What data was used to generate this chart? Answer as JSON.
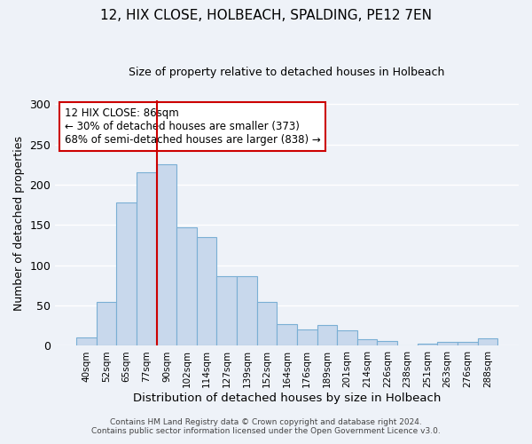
{
  "title": "12, HIX CLOSE, HOLBEACH, SPALDING, PE12 7EN",
  "subtitle": "Size of property relative to detached houses in Holbeach",
  "xlabel": "Distribution of detached houses by size in Holbeach",
  "ylabel": "Number of detached properties",
  "categories": [
    "40sqm",
    "52sqm",
    "65sqm",
    "77sqm",
    "90sqm",
    "102sqm",
    "114sqm",
    "127sqm",
    "139sqm",
    "152sqm",
    "164sqm",
    "176sqm",
    "189sqm",
    "201sqm",
    "214sqm",
    "226sqm",
    "238sqm",
    "251sqm",
    "263sqm",
    "276sqm",
    "288sqm"
  ],
  "values": [
    10,
    55,
    178,
    216,
    225,
    147,
    135,
    86,
    86,
    55,
    27,
    20,
    26,
    19,
    8,
    6,
    0,
    3,
    5,
    5,
    9
  ],
  "bar_color": "#c8d8ec",
  "bar_edge_color": "#7aafd4",
  "vline_x": 3.5,
  "vline_color": "#cc0000",
  "annotation_text": "12 HIX CLOSE: 86sqm\n← 30% of detached houses are smaller (373)\n68% of semi-detached houses are larger (838) →",
  "annotation_box_color": "#ffffff",
  "annotation_box_edge_color": "#cc0000",
  "ylim": [
    0,
    305
  ],
  "yticks": [
    0,
    50,
    100,
    150,
    200,
    250,
    300
  ],
  "footer1": "Contains HM Land Registry data © Crown copyright and database right 2024.",
  "footer2": "Contains public sector information licensed under the Open Government Licence v3.0.",
  "bg_color": "#eef2f8",
  "grid_color": "#ffffff"
}
